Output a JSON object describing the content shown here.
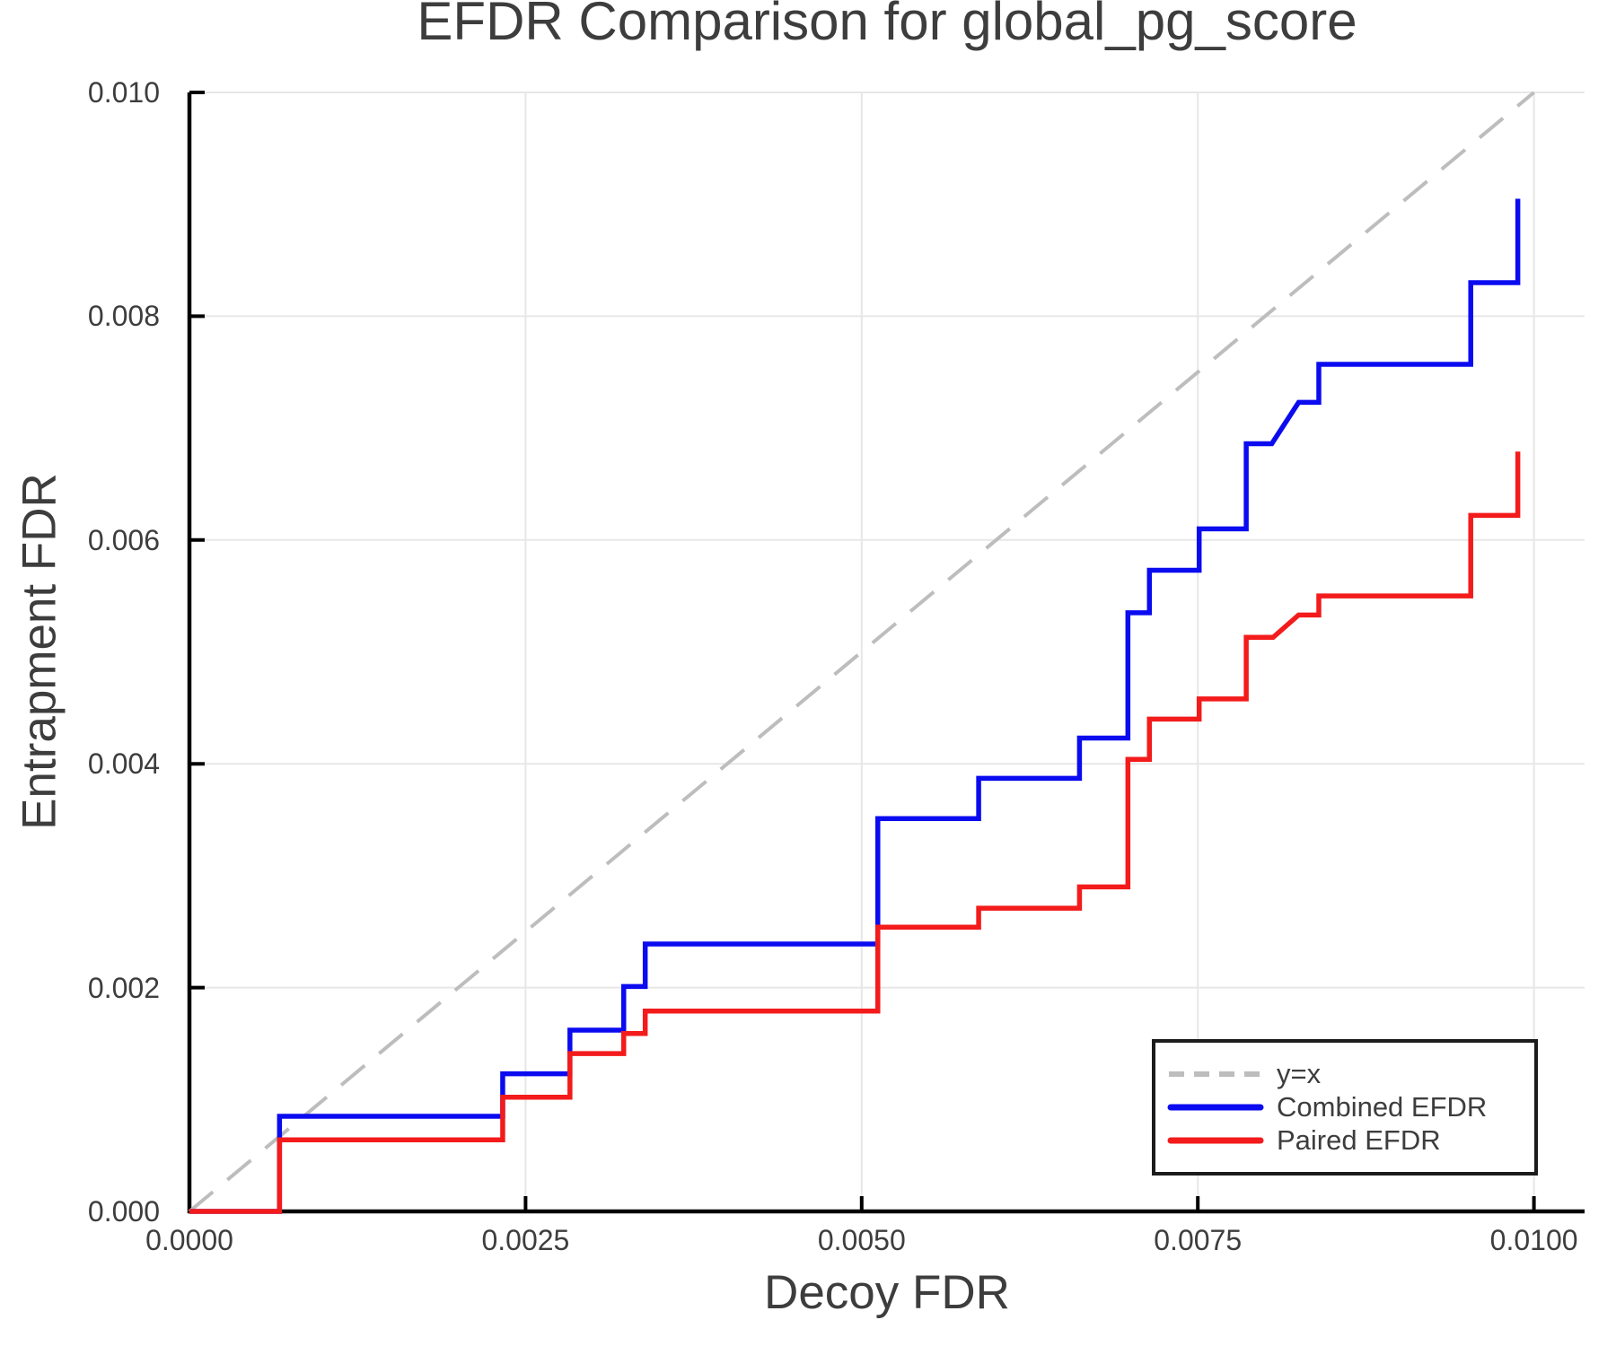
{
  "title": "EFDR Comparison for global_pg_score",
  "chart_data": {
    "type": "line",
    "subtype": "step-curves",
    "title": "EFDR Comparison for global_pg_score",
    "xlabel": "Decoy FDR",
    "ylabel": "Entrapment FDR",
    "xlim": [
      0,
      0.01038
    ],
    "ylim": [
      0,
      0.01
    ],
    "grid": true,
    "grid_color": "#e7e7e7",
    "axis_color": "#000000",
    "text_color": "#3d3d3d",
    "x_ticks": [
      {
        "value": 0.0,
        "label": "0.0000"
      },
      {
        "value": 0.0025,
        "label": "0.0025"
      },
      {
        "value": 0.005,
        "label": "0.0050"
      },
      {
        "value": 0.0075,
        "label": "0.0075"
      },
      {
        "value": 0.01,
        "label": "0.0100"
      }
    ],
    "y_ticks": [
      {
        "value": 0.0,
        "label": "0.000"
      },
      {
        "value": 0.002,
        "label": "0.002"
      },
      {
        "value": 0.004,
        "label": "0.004"
      },
      {
        "value": 0.006,
        "label": "0.006"
      },
      {
        "value": 0.008,
        "label": "0.008"
      },
      {
        "value": 0.01,
        "label": "0.010"
      }
    ],
    "reference_line": {
      "label": "y=x",
      "from": [
        0,
        0
      ],
      "to": [
        0.01,
        0.01
      ],
      "style": "dashed",
      "color": "#bdbdbd"
    },
    "series": [
      {
        "name": "Combined EFDR",
        "color": "#0b0bf0",
        "points": [
          [
            0,
            0
          ],
          [
            0.00067,
            0
          ],
          [
            0.00067,
            0.00085
          ],
          [
            0.00233,
            0.00085
          ],
          [
            0.00233,
            0.00123
          ],
          [
            0.00283,
            0.00123
          ],
          [
            0.00283,
            0.00162
          ],
          [
            0.00323,
            0.00162
          ],
          [
            0.00323,
            0.00201
          ],
          [
            0.00339,
            0.00201
          ],
          [
            0.00339,
            0.00239
          ],
          [
            0.00512,
            0.00239
          ],
          [
            0.00512,
            0.00351
          ],
          [
            0.00587,
            0.00351
          ],
          [
            0.00587,
            0.00387
          ],
          [
            0.00662,
            0.00387
          ],
          [
            0.00662,
            0.00423
          ],
          [
            0.00698,
            0.00423
          ],
          [
            0.00698,
            0.00535
          ],
          [
            0.00714,
            0.00535
          ],
          [
            0.00714,
            0.00573
          ],
          [
            0.00751,
            0.00573
          ],
          [
            0.00751,
            0.0061
          ],
          [
            0.00786,
            0.0061
          ],
          [
            0.00786,
            0.00686
          ],
          [
            0.00805,
            0.00686
          ],
          [
            0.00825,
            0.00723
          ],
          [
            0.0084,
            0.00723
          ],
          [
            0.0084,
            0.00757
          ],
          [
            0.00953,
            0.00757
          ],
          [
            0.00953,
            0.0083
          ],
          [
            0.00988,
            0.0083
          ],
          [
            0.00988,
            0.00905
          ]
        ]
      },
      {
        "name": "Paired EFDR",
        "color": "#f31b1b",
        "points": [
          [
            0,
            0
          ],
          [
            0.00067,
            0
          ],
          [
            0.00067,
            0.00064
          ],
          [
            0.00233,
            0.00064
          ],
          [
            0.00233,
            0.00102
          ],
          [
            0.00283,
            0.00102
          ],
          [
            0.00283,
            0.00141
          ],
          [
            0.00323,
            0.00141
          ],
          [
            0.00323,
            0.00159
          ],
          [
            0.00339,
            0.00159
          ],
          [
            0.00339,
            0.00179
          ],
          [
            0.00512,
            0.00179
          ],
          [
            0.00512,
            0.00254
          ],
          [
            0.00587,
            0.00254
          ],
          [
            0.00587,
            0.00271
          ],
          [
            0.00662,
            0.00271
          ],
          [
            0.00662,
            0.0029
          ],
          [
            0.00698,
            0.0029
          ],
          [
            0.00698,
            0.00404
          ],
          [
            0.00714,
            0.00404
          ],
          [
            0.00714,
            0.0044
          ],
          [
            0.00751,
            0.0044
          ],
          [
            0.00751,
            0.00458
          ],
          [
            0.00786,
            0.00458
          ],
          [
            0.00786,
            0.00513
          ],
          [
            0.00806,
            0.00513
          ],
          [
            0.00825,
            0.00533
          ],
          [
            0.0084,
            0.00533
          ],
          [
            0.0084,
            0.0055
          ],
          [
            0.00953,
            0.0055
          ],
          [
            0.00953,
            0.00622
          ],
          [
            0.00988,
            0.00622
          ],
          [
            0.00988,
            0.00679
          ]
        ]
      }
    ],
    "legend": {
      "position": "lower right",
      "items": [
        {
          "label": "y=x",
          "color": "#bdbdbd",
          "style": "dashed"
        },
        {
          "label": "Combined EFDR",
          "color": "#0b0bf0",
          "style": "solid"
        },
        {
          "label": "Paired EFDR",
          "color": "#f31b1b",
          "style": "solid"
        }
      ]
    }
  }
}
